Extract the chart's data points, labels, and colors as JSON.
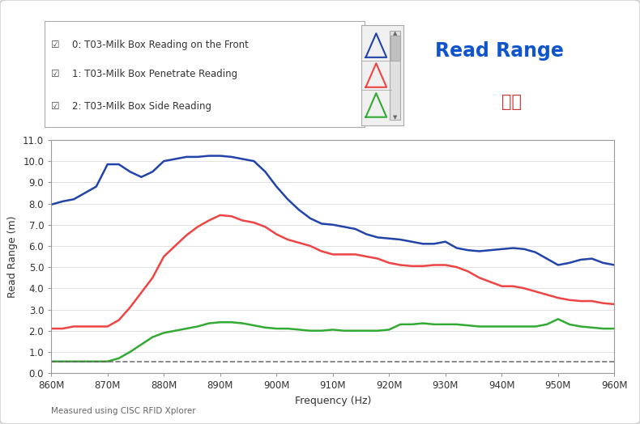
{
  "title": "Read Range",
  "title_chinese": "读距",
  "xlabel": "Frequency (Hz)",
  "ylabel": "Read Range (m)",
  "footnote": "Measured using CISC RFID Xplorer",
  "background_color": "#e8e8e8",
  "plot_bg_color": "#ffffff",
  "xlim": [
    860,
    960
  ],
  "ylim": [
    0,
    11
  ],
  "yticks": [
    0.0,
    1.0,
    2.0,
    3.0,
    4.0,
    5.0,
    6.0,
    7.0,
    8.0,
    9.0,
    10.0,
    11.0
  ],
  "xtick_labels": [
    "860M",
    "870M",
    "880M",
    "890M",
    "900M",
    "910M",
    "920M",
    "930M",
    "940M",
    "950M",
    "960M"
  ],
  "xtick_vals": [
    860,
    870,
    880,
    890,
    900,
    910,
    920,
    930,
    940,
    950,
    960
  ],
  "dashed_line_y": 0.55,
  "series": [
    {
      "label": "0: T03-Milk Box Reading on the Front",
      "color": "#2244aa",
      "x": [
        860,
        862,
        864,
        866,
        868,
        870,
        872,
        874,
        876,
        878,
        880,
        882,
        884,
        886,
        888,
        890,
        892,
        894,
        896,
        898,
        900,
        902,
        904,
        906,
        908,
        910,
        912,
        914,
        916,
        918,
        920,
        922,
        924,
        926,
        928,
        930,
        932,
        934,
        936,
        938,
        940,
        942,
        944,
        946,
        948,
        950,
        952,
        954,
        956,
        958,
        960
      ],
      "y": [
        7.95,
        8.1,
        8.2,
        8.5,
        8.8,
        9.85,
        9.85,
        9.5,
        9.25,
        9.5,
        10.0,
        10.1,
        10.2,
        10.2,
        10.25,
        10.25,
        10.2,
        10.1,
        10.0,
        9.5,
        8.8,
        8.2,
        7.7,
        7.3,
        7.05,
        7.0,
        6.9,
        6.8,
        6.55,
        6.4,
        6.35,
        6.3,
        6.2,
        6.1,
        6.1,
        6.2,
        5.9,
        5.8,
        5.75,
        5.8,
        5.85,
        5.9,
        5.85,
        5.7,
        5.4,
        5.1,
        5.2,
        5.35,
        5.4,
        5.2,
        5.1
      ]
    },
    {
      "label": "1: T03-Milk Box Penetrate Reading",
      "color": "#ee4444",
      "x": [
        860,
        862,
        864,
        866,
        868,
        870,
        872,
        874,
        876,
        878,
        880,
        882,
        884,
        886,
        888,
        890,
        892,
        894,
        896,
        898,
        900,
        902,
        904,
        906,
        908,
        910,
        912,
        914,
        916,
        918,
        920,
        922,
        924,
        926,
        928,
        930,
        932,
        934,
        936,
        938,
        940,
        942,
        944,
        946,
        948,
        950,
        952,
        954,
        956,
        958,
        960
      ],
      "y": [
        2.1,
        2.1,
        2.2,
        2.2,
        2.2,
        2.2,
        2.5,
        3.1,
        3.8,
        4.5,
        5.5,
        6.0,
        6.5,
        6.9,
        7.2,
        7.45,
        7.4,
        7.2,
        7.1,
        6.9,
        6.55,
        6.3,
        6.15,
        6.0,
        5.75,
        5.6,
        5.6,
        5.6,
        5.5,
        5.4,
        5.2,
        5.1,
        5.05,
        5.05,
        5.1,
        5.1,
        5.0,
        4.8,
        4.5,
        4.3,
        4.1,
        4.1,
        4.0,
        3.85,
        3.7,
        3.55,
        3.45,
        3.4,
        3.4,
        3.3,
        3.25
      ]
    },
    {
      "label": "2: T03-Milk Box Side Reading",
      "color": "#33aa33",
      "x": [
        860,
        862,
        864,
        866,
        868,
        870,
        872,
        874,
        876,
        878,
        880,
        882,
        884,
        886,
        888,
        890,
        892,
        894,
        896,
        898,
        900,
        902,
        904,
        906,
        908,
        910,
        912,
        914,
        916,
        918,
        920,
        922,
        924,
        926,
        928,
        930,
        932,
        934,
        936,
        938,
        940,
        942,
        944,
        946,
        948,
        950,
        952,
        954,
        956,
        958,
        960
      ],
      "y": [
        0.55,
        0.55,
        0.55,
        0.55,
        0.55,
        0.55,
        0.7,
        1.0,
        1.35,
        1.7,
        1.9,
        2.0,
        2.1,
        2.2,
        2.35,
        2.4,
        2.4,
        2.35,
        2.25,
        2.15,
        2.1,
        2.1,
        2.05,
        2.0,
        2.0,
        2.05,
        2.0,
        2.0,
        2.0,
        2.0,
        2.05,
        2.3,
        2.3,
        2.35,
        2.3,
        2.3,
        2.3,
        2.25,
        2.2,
        2.2,
        2.2,
        2.2,
        2.2,
        2.2,
        2.3,
        2.55,
        2.3,
        2.2,
        2.15,
        2.1,
        2.1
      ]
    }
  ]
}
